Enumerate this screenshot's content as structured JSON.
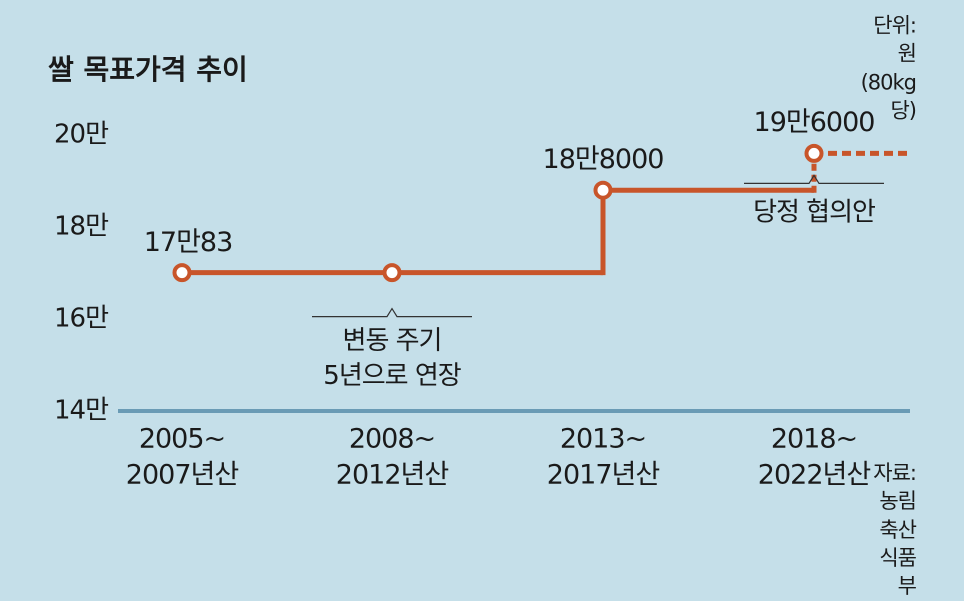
{
  "chart_data": {
    "type": "line",
    "title": "쌀 목표가격 추이",
    "subtitle": "단위: 원(80kg 당)",
    "source": "자료: 농림축산식품부",
    "categories": [
      "2005~\n2007년산",
      "2008~\n2012년산",
      "2013~\n2017년산",
      "2018~\n2022년산"
    ],
    "series": [
      {
        "name": "목표가격",
        "color": "#c8552a",
        "values": [
          170083,
          170083,
          188000,
          196000
        ],
        "value_labels": [
          "17만83",
          null,
          "18만8000",
          "19만6000"
        ]
      }
    ],
    "annotations": [
      "변동 주기\n5년으로 연장",
      "당정 협의안"
    ],
    "ylim": [
      140000,
      200000
    ],
    "yticks": [
      {
        "value": 140000,
        "label": "14만"
      },
      {
        "value": 160000,
        "label": "16만"
      },
      {
        "value": 180000,
        "label": "18만"
      },
      {
        "value": 200000,
        "label": "20만"
      }
    ],
    "axis_color": "#6a9bb5"
  }
}
